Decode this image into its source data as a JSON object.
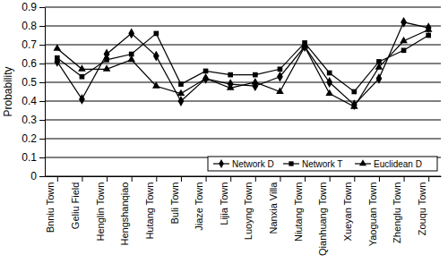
{
  "chart_data": {
    "type": "line",
    "y_label": "Probability",
    "categories": [
      "Bnniu Town",
      "Geliu Field",
      "Henglin Town",
      "Hengshanqiao",
      "Hutang Town",
      "Buli Town",
      "Jiaze Town",
      "Lijia Town",
      "Luoyng Town",
      "Nanxia Villa",
      "Niutang Town",
      "Qianhuang Town",
      "Xueyan Town",
      "Yaoguan Town",
      "Zhenglu Town",
      "Zouqu Town"
    ],
    "series": [
      {
        "name": "Network D",
        "color": "#000000",
        "marker": "diamond",
        "line_style": "solid",
        "values": [
          0.61,
          0.41,
          0.65,
          0.76,
          0.64,
          0.4,
          0.52,
          0.49,
          0.48,
          0.53,
          0.69,
          0.5,
          0.38,
          0.52,
          0.82,
          0.79
        ]
      },
      {
        "name": "Network T",
        "color": "#000000",
        "marker": "square",
        "line_style": "solid",
        "values": [
          0.63,
          0.53,
          0.62,
          0.65,
          0.76,
          0.49,
          0.56,
          0.54,
          0.54,
          0.57,
          0.71,
          0.55,
          0.45,
          0.61,
          0.67,
          0.75
        ]
      },
      {
        "name": "Euclidean D",
        "color": "#000000",
        "marker": "triangle",
        "line_style": "solid",
        "values": [
          0.68,
          0.57,
          0.57,
          0.62,
          0.48,
          0.44,
          0.52,
          0.47,
          0.5,
          0.45,
          0.69,
          0.44,
          0.37,
          0.58,
          0.72,
          0.78
        ]
      }
    ],
    "ylim": [
      0,
      0.9
    ],
    "yticks": [
      0,
      0.1,
      0.2,
      0.3,
      0.4,
      0.5,
      0.6,
      0.7,
      0.8,
      0.9
    ],
    "grid": true,
    "legend": "lower right"
  }
}
